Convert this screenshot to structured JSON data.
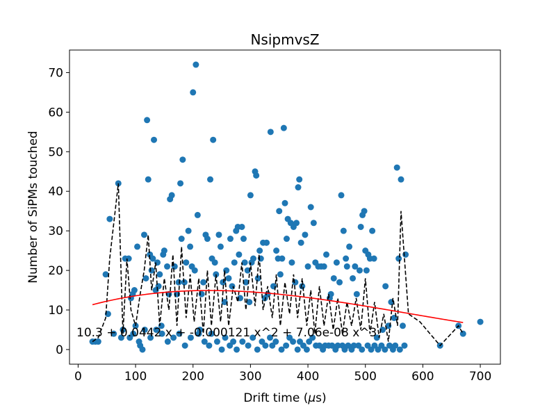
{
  "chart_data": {
    "type": "scatter",
    "title": "NsipmvsZ",
    "xlabel": "Drift time (μs)",
    "ylabel": "Number of SiPMs touched",
    "xlim": [
      -15,
      735
    ],
    "ylim": [
      -3.7,
      75.7
    ],
    "xticks": [
      0,
      100,
      200,
      300,
      400,
      500,
      600,
      700
    ],
    "yticks": [
      0,
      10,
      20,
      30,
      40,
      50,
      60,
      70
    ],
    "grid": false,
    "fit_label": "10.3 + 0.0442 x + -0.000121 x^2 + 7.06e-08 x^3",
    "colors": {
      "points": "#1f77b4",
      "fit": "#ff0000",
      "profile": "#000000"
    },
    "series": [
      {
        "type": "scatter",
        "points": [
          [
            25,
            2
          ],
          [
            30,
            2
          ],
          [
            35,
            2
          ],
          [
            48,
            19
          ],
          [
            52,
            9
          ],
          [
            55,
            33
          ],
          [
            62,
            4
          ],
          [
            70,
            42
          ],
          [
            75,
            3
          ],
          [
            78,
            5
          ],
          [
            82,
            23
          ],
          [
            88,
            23
          ],
          [
            92,
            13
          ],
          [
            95,
            14
          ],
          [
            98,
            15
          ],
          [
            100,
            6
          ],
          [
            103,
            26
          ],
          [
            108,
            1
          ],
          [
            112,
            0
          ],
          [
            115,
            29
          ],
          [
            118,
            18
          ],
          [
            120,
            58
          ],
          [
            122,
            43
          ],
          [
            125,
            24
          ],
          [
            128,
            20
          ],
          [
            130,
            23
          ],
          [
            132,
            53
          ],
          [
            135,
            15
          ],
          [
            138,
            22
          ],
          [
            140,
            16
          ],
          [
            142,
            19
          ],
          [
            145,
            6
          ],
          [
            148,
            24
          ],
          [
            150,
            25
          ],
          [
            155,
            21
          ],
          [
            158,
            14
          ],
          [
            160,
            38
          ],
          [
            163,
            39
          ],
          [
            168,
            21
          ],
          [
            172,
            14
          ],
          [
            175,
            17
          ],
          [
            178,
            42
          ],
          [
            180,
            28
          ],
          [
            182,
            48
          ],
          [
            185,
            17
          ],
          [
            188,
            22
          ],
          [
            192,
            30
          ],
          [
            195,
            26
          ],
          [
            198,
            21
          ],
          [
            200,
            65
          ],
          [
            203,
            20
          ],
          [
            205,
            72
          ],
          [
            208,
            34
          ],
          [
            212,
            5
          ],
          [
            215,
            14
          ],
          [
            218,
            17
          ],
          [
            222,
            29
          ],
          [
            225,
            28
          ],
          [
            230,
            43
          ],
          [
            233,
            23
          ],
          [
            235,
            53
          ],
          [
            238,
            22
          ],
          [
            240,
            19
          ],
          [
            245,
            29
          ],
          [
            248,
            26
          ],
          [
            252,
            17
          ],
          [
            255,
            12
          ],
          [
            258,
            20
          ],
          [
            262,
            18
          ],
          [
            265,
            28
          ],
          [
            268,
            16
          ],
          [
            272,
            22
          ],
          [
            275,
            30
          ],
          [
            278,
            31
          ],
          [
            280,
            24
          ],
          [
            282,
            13
          ],
          [
            285,
            31
          ],
          [
            288,
            28
          ],
          [
            290,
            22
          ],
          [
            292,
            17
          ],
          [
            295,
            20
          ],
          [
            298,
            12
          ],
          [
            300,
            39
          ],
          [
            302,
            22
          ],
          [
            305,
            23
          ],
          [
            308,
            45
          ],
          [
            310,
            44
          ],
          [
            313,
            18
          ],
          [
            316,
            25
          ],
          [
            318,
            23
          ],
          [
            322,
            27
          ],
          [
            325,
            13
          ],
          [
            328,
            27
          ],
          [
            330,
            14
          ],
          [
            335,
            55
          ],
          [
            340,
            16
          ],
          [
            345,
            25
          ],
          [
            348,
            23
          ],
          [
            350,
            35
          ],
          [
            352,
            19
          ],
          [
            355,
            23
          ],
          [
            358,
            56
          ],
          [
            360,
            37
          ],
          [
            363,
            28
          ],
          [
            365,
            33
          ],
          [
            370,
            32
          ],
          [
            372,
            22
          ],
          [
            375,
            31
          ],
          [
            378,
            17
          ],
          [
            380,
            32
          ],
          [
            383,
            41
          ],
          [
            385,
            43
          ],
          [
            388,
            27
          ],
          [
            390,
            16
          ],
          [
            395,
            29
          ],
          [
            400,
            21
          ],
          [
            405,
            36
          ],
          [
            410,
            32
          ],
          [
            413,
            22
          ],
          [
            418,
            21
          ],
          [
            423,
            21
          ],
          [
            428,
            21
          ],
          [
            432,
            24
          ],
          [
            438,
            13
          ],
          [
            440,
            14
          ],
          [
            445,
            18
          ],
          [
            450,
            22
          ],
          [
            455,
            17
          ],
          [
            458,
            39
          ],
          [
            462,
            30
          ],
          [
            466,
            23
          ],
          [
            468,
            21
          ],
          [
            472,
            26
          ],
          [
            478,
            18
          ],
          [
            482,
            21
          ],
          [
            485,
            14
          ],
          [
            490,
            20
          ],
          [
            492,
            31
          ],
          [
            495,
            34
          ],
          [
            498,
            35
          ],
          [
            500,
            25
          ],
          [
            502,
            20
          ],
          [
            505,
            24
          ],
          [
            508,
            23
          ],
          [
            512,
            30
          ],
          [
            515,
            23
          ],
          [
            520,
            3
          ],
          [
            530,
            5
          ],
          [
            535,
            16
          ],
          [
            540,
            6
          ],
          [
            545,
            12
          ],
          [
            550,
            8
          ],
          [
            555,
            46
          ],
          [
            558,
            23
          ],
          [
            562,
            43
          ],
          [
            565,
            6
          ],
          [
            570,
            24
          ],
          [
            630,
            1
          ],
          [
            662,
            6
          ],
          [
            670,
            4
          ],
          [
            700,
            7
          ],
          [
            90,
            3
          ],
          [
            96,
            4
          ],
          [
            106,
            2
          ],
          [
            116,
            5
          ],
          [
            126,
            3
          ],
          [
            136,
            5
          ],
          [
            146,
            4
          ],
          [
            156,
            2
          ],
          [
            166,
            3
          ],
          [
            176,
            4
          ],
          [
            186,
            1
          ],
          [
            196,
            3
          ],
          [
            210,
            4
          ],
          [
            220,
            2
          ],
          [
            228,
            1
          ],
          [
            232,
            4
          ],
          [
            242,
            2
          ],
          [
            250,
            0
          ],
          [
            256,
            3
          ],
          [
            264,
            1
          ],
          [
            270,
            2
          ],
          [
            276,
            0
          ],
          [
            286,
            2
          ],
          [
            296,
            1
          ],
          [
            304,
            3
          ],
          [
            312,
            0
          ],
          [
            320,
            2
          ],
          [
            326,
            1
          ],
          [
            334,
            3
          ],
          [
            338,
            1
          ],
          [
            344,
            2
          ],
          [
            354,
            0
          ],
          [
            362,
            1
          ],
          [
            368,
            3
          ],
          [
            374,
            2
          ],
          [
            382,
            0
          ],
          [
            386,
            2
          ],
          [
            392,
            1
          ],
          [
            398,
            0
          ],
          [
            402,
            2
          ],
          [
            408,
            3
          ],
          [
            414,
            1
          ],
          [
            420,
            1
          ],
          [
            426,
            0
          ],
          [
            430,
            1
          ],
          [
            436,
            1
          ],
          [
            442,
            1
          ],
          [
            448,
            0
          ],
          [
            452,
            1
          ],
          [
            460,
            1
          ],
          [
            464,
            0
          ],
          [
            470,
            1
          ],
          [
            476,
            0
          ],
          [
            480,
            1
          ],
          [
            488,
            1
          ],
          [
            494,
            0
          ],
          [
            504,
            1
          ],
          [
            510,
            0
          ],
          [
            516,
            1
          ],
          [
            522,
            0
          ],
          [
            528,
            1
          ],
          [
            534,
            0
          ],
          [
            542,
            1
          ],
          [
            548,
            0
          ],
          [
            552,
            1
          ],
          [
            560,
            0
          ],
          [
            568,
            1
          ]
        ]
      },
      {
        "type": "line",
        "style": "dashed",
        "points": [
          [
            25,
            2
          ],
          [
            35,
            3
          ],
          [
            48,
            8
          ],
          [
            55,
            23
          ],
          [
            70,
            42
          ],
          [
            78,
            4
          ],
          [
            85,
            23
          ],
          [
            92,
            10
          ],
          [
            100,
            6
          ],
          [
            108,
            14
          ],
          [
            115,
            20
          ],
          [
            122,
            29
          ],
          [
            128,
            15
          ],
          [
            135,
            22
          ],
          [
            142,
            6
          ],
          [
            150,
            18
          ],
          [
            158,
            10
          ],
          [
            165,
            24
          ],
          [
            172,
            6
          ],
          [
            180,
            26
          ],
          [
            188,
            8
          ],
          [
            195,
            19
          ],
          [
            202,
            7
          ],
          [
            210,
            18
          ],
          [
            218,
            4
          ],
          [
            225,
            20
          ],
          [
            232,
            6
          ],
          [
            240,
            19
          ],
          [
            248,
            7
          ],
          [
            255,
            20
          ],
          [
            262,
            6
          ],
          [
            270,
            16
          ],
          [
            278,
            12
          ],
          [
            285,
            22
          ],
          [
            292,
            10
          ],
          [
            300,
            22
          ],
          [
            308,
            11
          ],
          [
            315,
            24
          ],
          [
            322,
            10
          ],
          [
            330,
            16
          ],
          [
            338,
            8
          ],
          [
            345,
            19
          ],
          [
            352,
            6
          ],
          [
            360,
            17
          ],
          [
            368,
            9
          ],
          [
            375,
            19
          ],
          [
            382,
            8
          ],
          [
            390,
            18
          ],
          [
            398,
            6
          ],
          [
            405,
            15
          ],
          [
            412,
            4
          ],
          [
            420,
            16
          ],
          [
            428,
            6
          ],
          [
            436,
            14
          ],
          [
            444,
            5
          ],
          [
            452,
            13
          ],
          [
            460,
            4
          ],
          [
            468,
            12
          ],
          [
            476,
            6
          ],
          [
            484,
            13
          ],
          [
            492,
            5
          ],
          [
            500,
            18
          ],
          [
            508,
            4
          ],
          [
            516,
            12
          ],
          [
            524,
            3
          ],
          [
            532,
            9
          ],
          [
            540,
            2
          ],
          [
            548,
            13
          ],
          [
            556,
            6
          ],
          [
            562,
            35
          ],
          [
            575,
            9
          ],
          [
            595,
            7
          ],
          [
            630,
            1
          ],
          [
            662,
            6
          ],
          [
            670,
            4
          ]
        ]
      },
      {
        "type": "fit",
        "coefficients": [
          10.3,
          0.0442,
          -0.000121,
          7.06e-08
        ],
        "x_range": [
          25,
          670
        ]
      }
    ]
  }
}
